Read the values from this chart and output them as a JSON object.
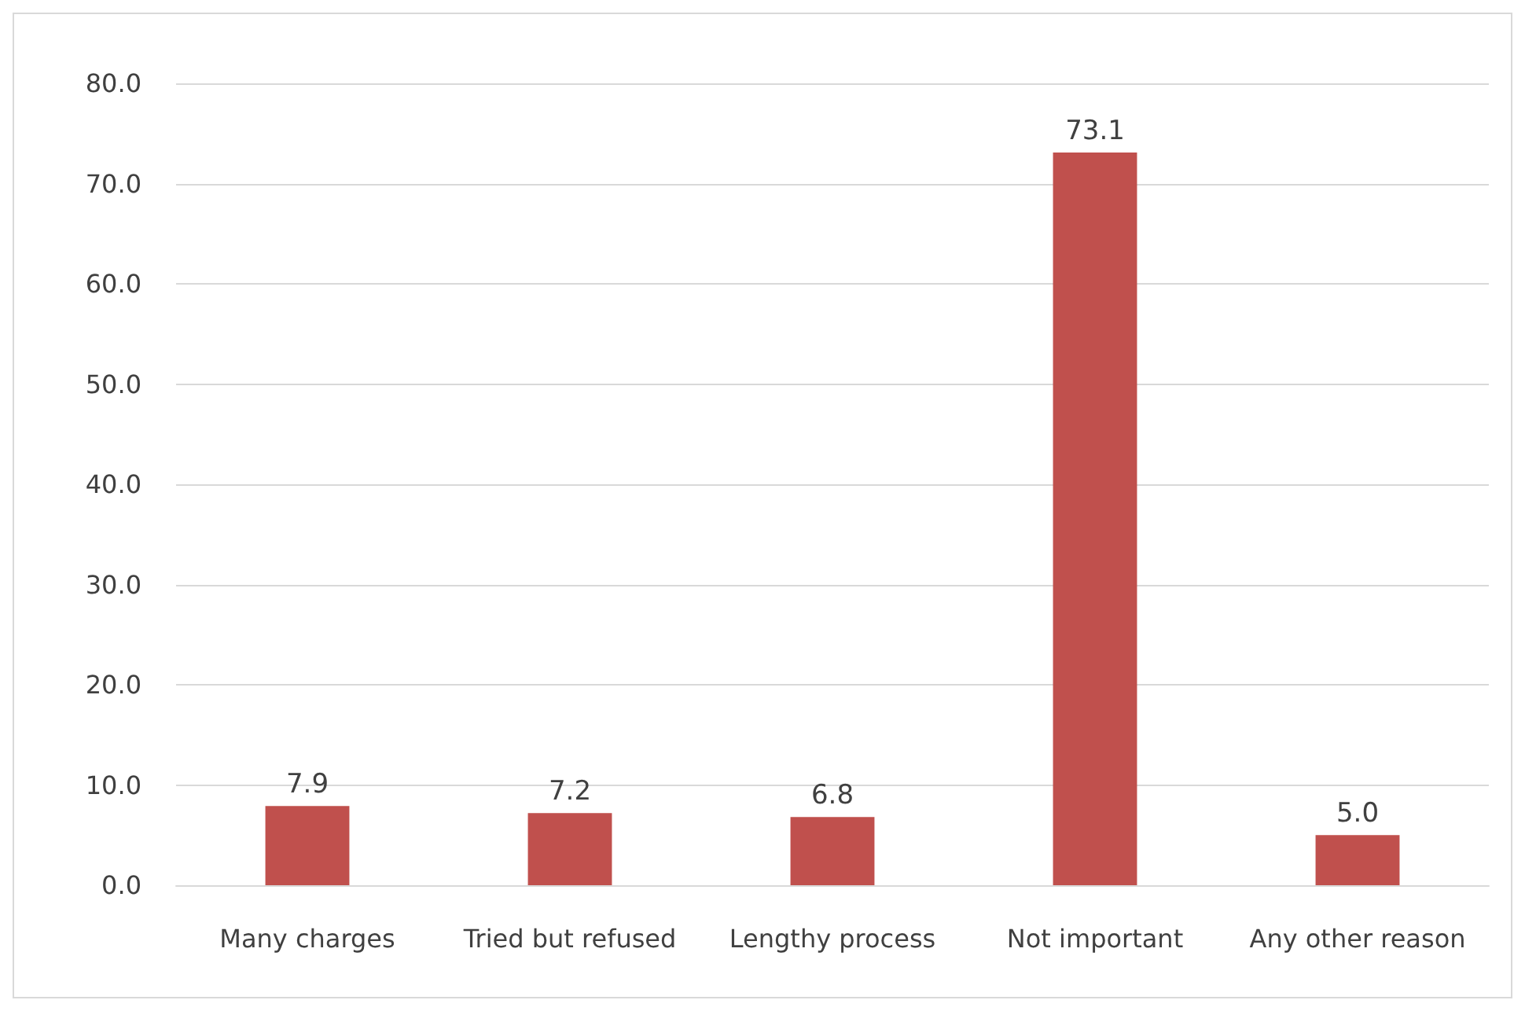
{
  "chart_data": {
    "type": "bar",
    "categories": [
      "Many charges",
      "Tried but refused",
      "Lengthy process",
      "Not important",
      "Any other reason"
    ],
    "values": [
      7.9,
      7.2,
      6.8,
      73.1,
      5.0
    ],
    "value_labels": [
      "7.9",
      "7.2",
      "6.8",
      "73.1",
      "5.0"
    ],
    "color": "#c0504d",
    "ylim": [
      0,
      80
    ],
    "yticks": [
      {
        "value": 0,
        "label": "0.0"
      },
      {
        "value": 10,
        "label": "10.0"
      },
      {
        "value": 20,
        "label": "20.0"
      },
      {
        "value": 30,
        "label": "30.0"
      },
      {
        "value": 40,
        "label": "40.0"
      },
      {
        "value": 50,
        "label": "50.0"
      },
      {
        "value": 60,
        "label": "60.0"
      },
      {
        "value": 70,
        "label": "70.0"
      },
      {
        "value": 80,
        "label": "80.0"
      }
    ],
    "grid": true
  }
}
